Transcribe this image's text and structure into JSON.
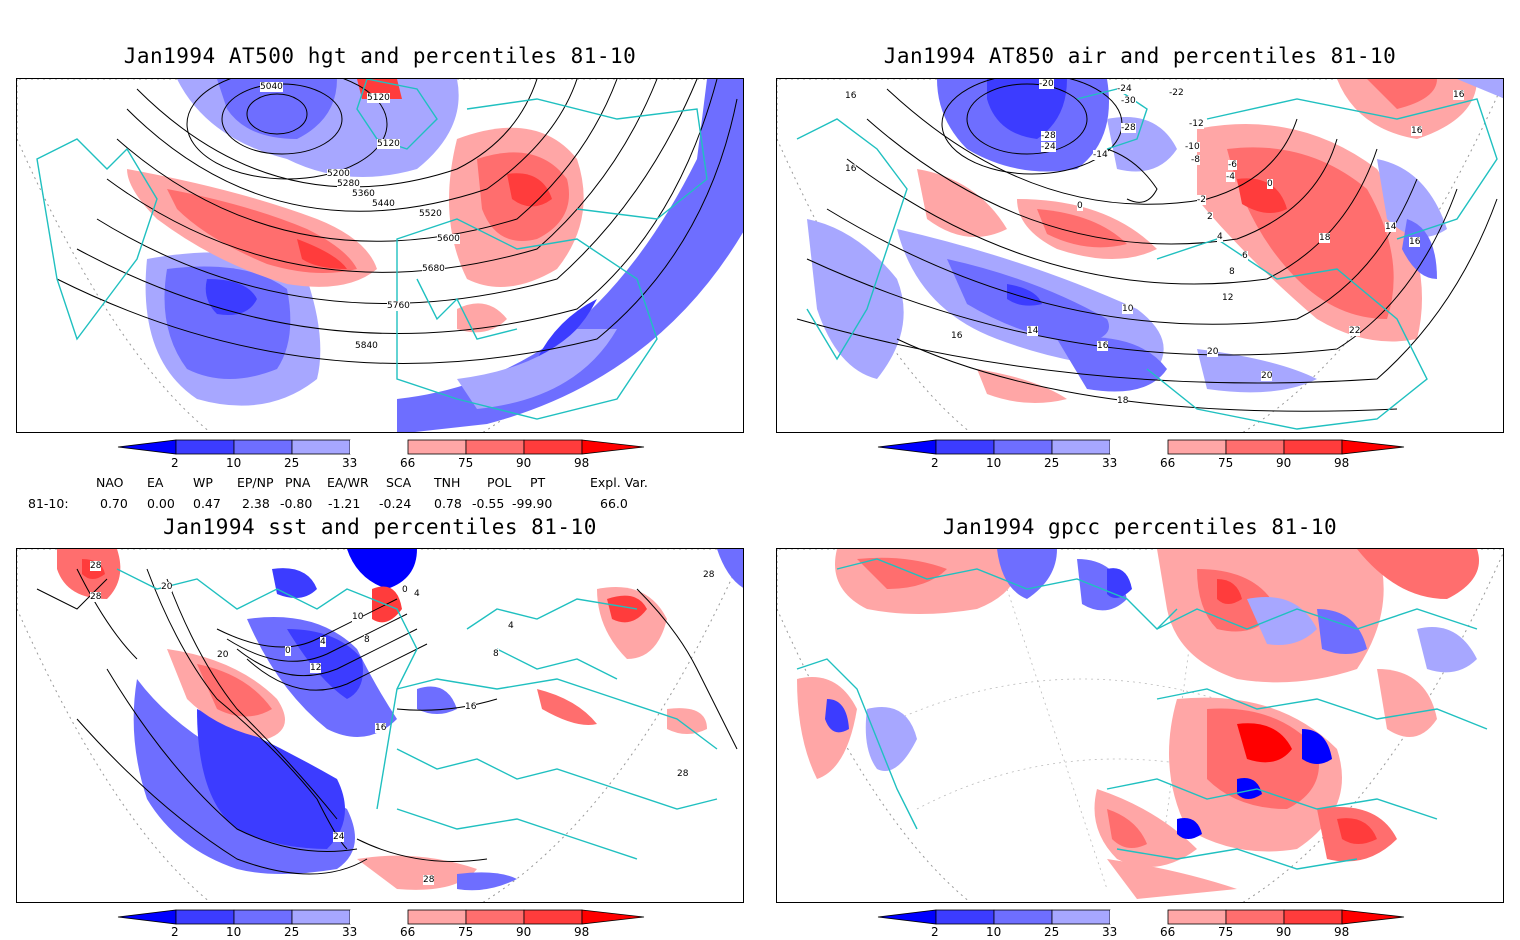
{
  "panels": [
    {
      "id": "p1",
      "title": "Jan1994 AT500 hgt and percentiles 81-10",
      "contour_labels": [
        "5040",
        "5200",
        "5120",
        "5120",
        "5200",
        "5280",
        "5360",
        "5440",
        "5520",
        "5600",
        "5680",
        "5760",
        "5840"
      ]
    },
    {
      "id": "p2",
      "title": "Jan1994 AT850 air and percentiles 81-10",
      "contour_labels": [
        "-20",
        "16",
        "16",
        "-24",
        "-22",
        "-28",
        "-30",
        "-28",
        "-24",
        "-14",
        "-12",
        "-10",
        "-8",
        "-6",
        "-4",
        "16",
        "0",
        "-2",
        "0",
        "2",
        "4",
        "6",
        "8",
        "10",
        "12",
        "14",
        "14",
        "16",
        "16",
        "18",
        "20",
        "20",
        "22",
        "16",
        "18",
        "16",
        "16"
      ]
    },
    {
      "id": "p3",
      "title": "Jan1994 sst and percentiles 81-10",
      "contour_labels": [
        "28",
        "28",
        "20",
        "0",
        "4",
        "10",
        "0",
        "4",
        "8",
        "12",
        "20",
        "16",
        "16",
        "4",
        "8",
        "24",
        "28",
        "28",
        "28"
      ]
    },
    {
      "id": "p4",
      "title": "Jan1994 gpcc percentiles 81-10",
      "contour_labels": []
    }
  ],
  "colorbar": {
    "levels": [
      "2",
      "10",
      "25",
      "33",
      "66",
      "75",
      "90",
      "98"
    ],
    "colors": {
      "below2": "#0000ff",
      "b2_10": "#3c3cff",
      "b10_25": "#6e6eff",
      "b25_33": "#a7a7ff",
      "mid": "#ffffff",
      "r66_75": "#ffa6a6",
      "r75_90": "#ff6e6e",
      "r90_98": "#ff3c3c",
      "above98": "#ff0000"
    }
  },
  "indices": {
    "headers": [
      "NAO",
      "EA",
      "WP",
      "EP/NP",
      "PNA",
      "EA/WR",
      "SCA",
      "TNH",
      "POL",
      "PT",
      "Expl. Var."
    ],
    "row_label": "81-10:",
    "values": [
      "0.70",
      "0.00",
      "0.47",
      "2.38",
      "-0.80",
      "-1.21",
      "-0.24",
      "0.78",
      "-0.55",
      "-99.90",
      "66.0"
    ]
  },
  "style": {
    "coast": "#20c0c0",
    "contour": "#000000"
  }
}
